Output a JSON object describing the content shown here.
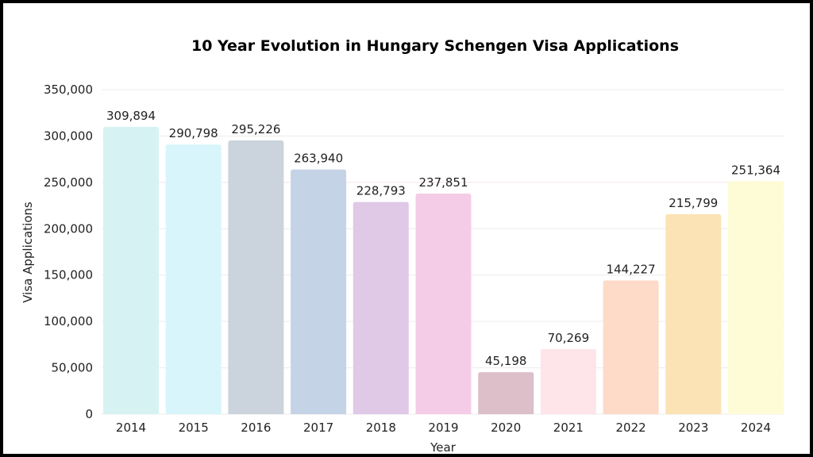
{
  "chart_data": {
    "type": "bar",
    "title": "10 Year Evolution in Hungary Schengen Visa Applications",
    "xlabel": "Year",
    "ylabel": "Visa Applications",
    "categories": [
      "2014",
      "2015",
      "2016",
      "2017",
      "2018",
      "2019",
      "2020",
      "2021",
      "2022",
      "2023",
      "2024"
    ],
    "values": [
      309894,
      290798,
      295226,
      263940,
      228793,
      237851,
      45198,
      70269,
      144227,
      215799,
      251364
    ],
    "data_labels": [
      "309,894",
      "290,798",
      "295,226",
      "263,940",
      "228,793",
      "237,851",
      "45,198",
      "70,269",
      "144,227",
      "215,799",
      "251,364"
    ],
    "colors": [
      "#d7f2f3",
      "#d7f5fb",
      "#cbd3dc",
      "#c4d4e6",
      "#e0c8e7",
      "#f5cce7",
      "#dcbfc9",
      "#fde5e9",
      "#fedac8",
      "#fbe3b5",
      "#fefbd7"
    ],
    "ylim": [
      0,
      350000
    ],
    "yticks": [
      0,
      50000,
      100000,
      150000,
      200000,
      250000,
      300000,
      350000
    ],
    "ytick_labels": [
      "0",
      "50,000",
      "100,000",
      "150,000",
      "200,000",
      "250,000",
      "300,000",
      "350,000"
    ],
    "grid": true,
    "legend": "none"
  }
}
